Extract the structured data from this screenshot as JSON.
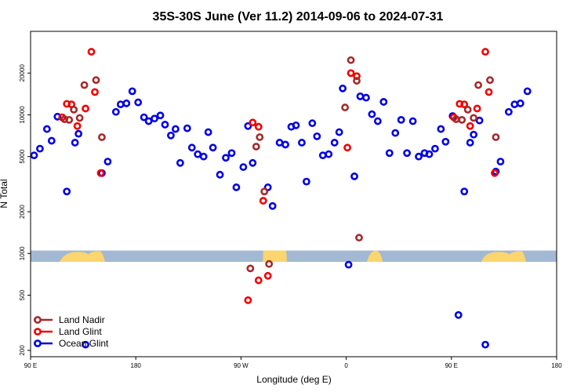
{
  "chart_data": {
    "type": "scatter",
    "title": "35S-30S June (Ver 11.2)   2014-09-06 to 2024-07-31",
    "xlabel": "Longitude (deg E)",
    "ylabel": "N Total",
    "y_scale": "log",
    "xlim": [
      90,
      540
    ],
    "ylim": [
      180,
      40000
    ],
    "x_ticks": [
      {
        "value": 90,
        "label": "90 E"
      },
      {
        "value": 180,
        "label": "180"
      },
      {
        "value": 270,
        "label": "90 W"
      },
      {
        "value": 360,
        "label": "0"
      },
      {
        "value": 450,
        "label": "90 E"
      },
      {
        "value": 540,
        "label": "180"
      }
    ],
    "y_ticks": [
      {
        "value": 200,
        "label": "200"
      },
      {
        "value": 500,
        "label": "500"
      },
      {
        "value": 1000,
        "label": "1000"
      },
      {
        "value": 2000,
        "label": "2000"
      },
      {
        "value": 5000,
        "label": "5000"
      },
      {
        "value": 10000,
        "label": "10000"
      },
      {
        "value": 20000,
        "label": "20000"
      }
    ],
    "map_strip": {
      "y_low": 870,
      "y_high": 1050,
      "ocean_color": "#a3b8d3",
      "land_color": "#fcd56f"
    },
    "legend_position": "bottom-left",
    "series": [
      {
        "name": "Ocean Glint",
        "color": "#0000e6",
        "points": [
          [
            93,
            5100
          ],
          [
            98,
            5700
          ],
          [
            104,
            7900
          ],
          [
            108,
            6500
          ],
          [
            113,
            9700
          ],
          [
            121,
            2800
          ],
          [
            128,
            6300
          ],
          [
            131,
            7300
          ],
          [
            137,
            220
          ],
          [
            151,
            3800
          ],
          [
            156,
            4600
          ],
          [
            163,
            10500
          ],
          [
            167,
            11900
          ],
          [
            172,
            12100
          ],
          [
            177,
            14800
          ],
          [
            182,
            12300
          ],
          [
            187,
            9600
          ],
          [
            191,
            9000
          ],
          [
            196,
            9400
          ],
          [
            201,
            9900
          ],
          [
            205,
            8500
          ],
          [
            210,
            7100
          ],
          [
            214,
            7900
          ],
          [
            218,
            4500
          ],
          [
            224,
            8000
          ],
          [
            228,
            5800
          ],
          [
            233,
            5200
          ],
          [
            238,
            5000
          ],
          [
            242,
            7500
          ],
          [
            246,
            5800
          ],
          [
            252,
            3700
          ],
          [
            257,
            4900
          ],
          [
            262,
            5300
          ],
          [
            266,
            3000
          ],
          [
            272,
            4200
          ],
          [
            276,
            8300
          ],
          [
            280,
            4500
          ],
          [
            293,
            3000
          ],
          [
            297,
            2200
          ],
          [
            303,
            6300
          ],
          [
            308,
            6100
          ],
          [
            313,
            8200
          ],
          [
            317,
            8400
          ],
          [
            322,
            6300
          ],
          [
            326,
            3300
          ],
          [
            331,
            8700
          ],
          [
            335,
            7000
          ],
          [
            340,
            5100
          ],
          [
            345,
            5200
          ],
          [
            350,
            6300
          ],
          [
            354,
            7500
          ],
          [
            357,
            15500
          ],
          [
            362,
            830
          ],
          [
            367,
            3600
          ],
          [
            372,
            13600
          ],
          [
            377,
            13300
          ],
          [
            382,
            10100
          ],
          [
            387,
            9000
          ],
          [
            392,
            12400
          ],
          [
            397,
            5300
          ],
          [
            402,
            7400
          ],
          [
            407,
            9200
          ],
          [
            412,
            5300
          ],
          [
            417,
            9000
          ],
          [
            422,
            5000
          ],
          [
            427,
            5300
          ],
          [
            431,
            5200
          ],
          [
            436,
            5700
          ],
          [
            441,
            7900
          ],
          [
            445,
            6400
          ],
          [
            451,
            9800
          ],
          [
            456,
            360
          ],
          [
            461,
            2800
          ],
          [
            466,
            6300
          ],
          [
            469,
            7200
          ],
          [
            474,
            9100
          ],
          [
            479,
            220
          ],
          [
            488,
            3900
          ],
          [
            492,
            4600
          ],
          [
            499,
            10500
          ],
          [
            504,
            11900
          ],
          [
            509,
            12100
          ],
          [
            515,
            14800
          ]
        ]
      },
      {
        "name": "Land Glint",
        "color": "#f20000",
        "points": [
          [
            117,
            9600
          ],
          [
            121,
            12000
          ],
          [
            125,
            11900
          ],
          [
            130,
            8300
          ],
          [
            137,
            11100
          ],
          [
            142,
            28500
          ],
          [
            145,
            14600
          ],
          [
            150,
            3800
          ],
          [
            280,
            8800
          ],
          [
            285,
            8200
          ],
          [
            289,
            2400
          ],
          [
            285,
            640
          ],
          [
            293,
            690
          ],
          [
            276,
            460
          ],
          [
            361,
            5800
          ],
          [
            364,
            20000
          ],
          [
            369,
            19000
          ],
          [
            452,
            9600
          ],
          [
            457,
            12000
          ],
          [
            461,
            11900
          ],
          [
            466,
            8300
          ],
          [
            472,
            11100
          ],
          [
            479,
            28500
          ],
          [
            482,
            14600
          ],
          [
            487,
            3800
          ]
        ]
      },
      {
        "name": "Land Nadir",
        "color": "#a52a2a",
        "points": [
          [
            119,
            9300
          ],
          [
            123,
            9200
          ],
          [
            127,
            10900
          ],
          [
            132,
            9500
          ],
          [
            136,
            16400
          ],
          [
            146,
            17800
          ],
          [
            151,
            6900
          ],
          [
            283,
            5900
          ],
          [
            286,
            6900
          ],
          [
            290,
            2800
          ],
          [
            278,
            780
          ],
          [
            294,
            840
          ],
          [
            359,
            11300
          ],
          [
            364,
            24800
          ],
          [
            369,
            17600
          ],
          [
            371,
            1300
          ],
          [
            454,
            9300
          ],
          [
            459,
            9200
          ],
          [
            464,
            10900
          ],
          [
            469,
            9500
          ],
          [
            473,
            16400
          ],
          [
            483,
            17800
          ],
          [
            488,
            6900
          ]
        ]
      }
    ]
  }
}
